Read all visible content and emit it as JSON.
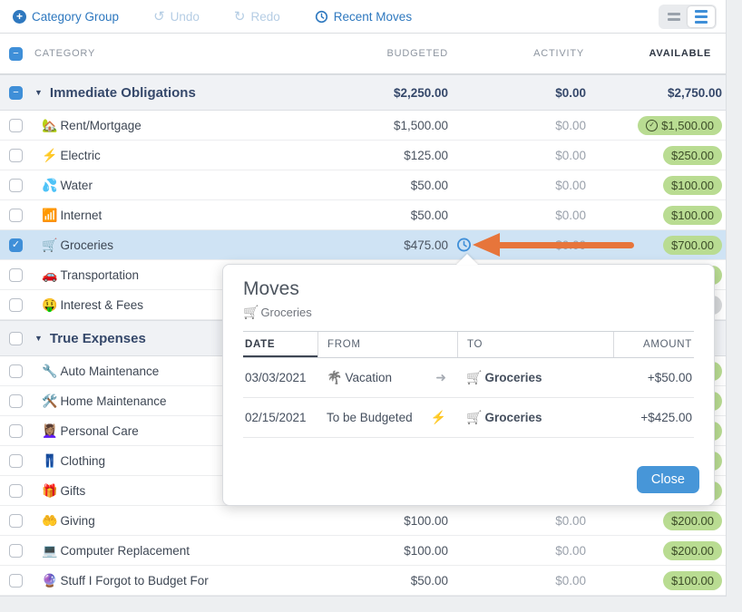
{
  "toolbar": {
    "category_group_label": "Category Group",
    "undo_label": "Undo",
    "redo_label": "Redo",
    "recent_moves_label": "Recent Moves"
  },
  "view_toggle": {
    "collapsed_name": "collapsed-view",
    "expanded_name": "expanded-view",
    "active": "expanded"
  },
  "table": {
    "columns": {
      "category": "Category",
      "budgeted": "Budgeted",
      "activity": "Activity",
      "available": "Available"
    },
    "select_all_state": "minus",
    "rows": [
      {
        "type": "group",
        "name": "Immediate Obligations",
        "checkbox": "minus",
        "budgeted": "$2,250.00",
        "activity": "$0.00",
        "available": "$2,750.00"
      },
      {
        "type": "category",
        "emoji": "🏡",
        "name": "Rent/Mortgage",
        "checkbox": "unchecked",
        "budgeted": "$1,500.00",
        "activity": "$0.00",
        "available": "$1,500.00",
        "pill": "green",
        "available_icon": "check-circle"
      },
      {
        "type": "category",
        "emoji": "⚡",
        "name": "Electric",
        "checkbox": "unchecked",
        "budgeted": "$125.00",
        "activity": "$0.00",
        "available": "$250.00",
        "pill": "green"
      },
      {
        "type": "category",
        "emoji": "💦",
        "name": "Water",
        "checkbox": "unchecked",
        "budgeted": "$50.00",
        "activity": "$0.00",
        "available": "$100.00",
        "pill": "green"
      },
      {
        "type": "category",
        "emoji": "📶",
        "name": "Internet",
        "checkbox": "unchecked",
        "budgeted": "$50.00",
        "activity": "$0.00",
        "available": "$100.00",
        "pill": "green"
      },
      {
        "type": "category",
        "emoji": "🛒",
        "name": "Groceries",
        "checkbox": "checked",
        "selected": true,
        "budgeted": "$475.00",
        "activity": "$0.00",
        "available": "$700.00",
        "pill": "green",
        "has_move_icon": true,
        "has_annotation_arrow": true
      },
      {
        "type": "category",
        "emoji": "🚗",
        "name": "Transportation",
        "checkbox": "unchecked",
        "budgeted": "",
        "activity": "",
        "available": "",
        "pill": "green"
      },
      {
        "type": "category",
        "emoji": "🤑",
        "name": "Interest & Fees",
        "checkbox": "unchecked",
        "budgeted": "",
        "activity": "",
        "available": "",
        "pill": "grey"
      },
      {
        "type": "group",
        "name": "True Expenses",
        "checkbox": "unchecked",
        "budgeted": "",
        "activity": "",
        "available": ""
      },
      {
        "type": "category",
        "emoji": "🔧",
        "name": "Auto Maintenance",
        "checkbox": "unchecked",
        "budgeted": "",
        "activity": "",
        "available": "",
        "pill": "green"
      },
      {
        "type": "category",
        "emoji": "🛠️",
        "name": "Home Maintenance",
        "checkbox": "unchecked",
        "budgeted": "",
        "activity": "",
        "available": "",
        "pill": "green"
      },
      {
        "type": "category",
        "emoji": "💆🏽‍♀️",
        "name": "Personal Care",
        "checkbox": "unchecked",
        "budgeted": "",
        "activity": "",
        "available": "",
        "pill": "green"
      },
      {
        "type": "category",
        "emoji": "👖",
        "name": "Clothing",
        "checkbox": "unchecked",
        "budgeted": "",
        "activity": "",
        "available": "",
        "pill": "green"
      },
      {
        "type": "category",
        "emoji": "🎁",
        "name": "Gifts",
        "checkbox": "unchecked",
        "budgeted": "",
        "activity": "",
        "available": "",
        "pill": "green"
      },
      {
        "type": "category",
        "emoji": "🤲",
        "name": "Giving",
        "checkbox": "unchecked",
        "budgeted": "$100.00",
        "activity": "$0.00",
        "available": "$200.00",
        "pill": "green"
      },
      {
        "type": "category",
        "emoji": "💻",
        "name": "Computer Replacement",
        "checkbox": "unchecked",
        "budgeted": "$100.00",
        "activity": "$0.00",
        "available": "$200.00",
        "pill": "green"
      },
      {
        "type": "category",
        "emoji": "🔮",
        "name": "Stuff I Forgot to Budget For",
        "checkbox": "unchecked",
        "budgeted": "$50.00",
        "activity": "$0.00",
        "available": "$100.00",
        "pill": "green"
      }
    ]
  },
  "popup": {
    "title": "Moves",
    "subject_emoji": "🛒",
    "subject_name": "Groceries",
    "headers": {
      "date": "Date",
      "from": "From",
      "to": "To",
      "amount": "Amount"
    },
    "moves": [
      {
        "date": "03/03/2021",
        "from_emoji": "🌴",
        "from": "Vacation",
        "move_icon": "arrow-right",
        "to_emoji": "🛒",
        "to": "Groceries",
        "amount": "+$50.00"
      },
      {
        "date": "02/15/2021",
        "from_emoji": "",
        "from": "To be Budgeted",
        "move_icon": "lightning",
        "to_emoji": "🛒",
        "to": "Groceries",
        "amount": "+$425.00"
      }
    ],
    "close_label": "Close"
  },
  "colors": {
    "accent_blue": "#2e78bf",
    "checkbox_blue": "#3f8fd8",
    "selected_row": "#cfe3f4",
    "pill_green": "#b9dc92",
    "pill_grey": "#d6d8da",
    "arrow_orange": "#e7753b",
    "close_button": "#4796d8"
  }
}
